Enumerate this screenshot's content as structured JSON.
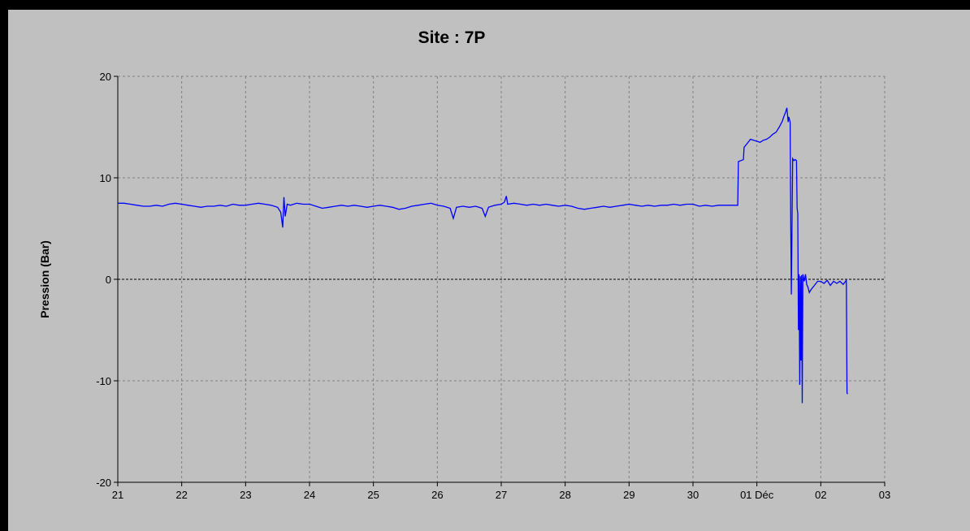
{
  "chart_data": {
    "type": "line",
    "title": "Site :  7P",
    "xlabel": "",
    "ylabel": "Pression  (Bar)",
    "xlim": [
      0,
      12
    ],
    "ylim": [
      -20,
      20
    ],
    "x_ticks": [
      {
        "pos": 0,
        "label": "21"
      },
      {
        "pos": 1,
        "label": "22"
      },
      {
        "pos": 2,
        "label": "23"
      },
      {
        "pos": 3,
        "label": "24"
      },
      {
        "pos": 4,
        "label": "25"
      },
      {
        "pos": 5,
        "label": "26"
      },
      {
        "pos": 6,
        "label": "27"
      },
      {
        "pos": 7,
        "label": "28"
      },
      {
        "pos": 8,
        "label": "29"
      },
      {
        "pos": 9,
        "label": "30"
      },
      {
        "pos": 10,
        "label": "01 Déc"
      },
      {
        "pos": 11,
        "label": "02"
      },
      {
        "pos": 12,
        "label": "03"
      }
    ],
    "y_ticks": [
      {
        "value": 20,
        "label": "20"
      },
      {
        "value": 10,
        "label": "10"
      },
      {
        "value": 0,
        "label": "0"
      },
      {
        "value": -10,
        "label": "-10"
      },
      {
        "value": -20,
        "label": "-20"
      }
    ],
    "grid": true,
    "zero_line": true,
    "series": [
      {
        "color": "#0000ff",
        "points": [
          [
            0.0,
            7.5
          ],
          [
            0.1,
            7.5
          ],
          [
            0.2,
            7.4
          ],
          [
            0.3,
            7.3
          ],
          [
            0.4,
            7.2
          ],
          [
            0.5,
            7.2
          ],
          [
            0.6,
            7.3
          ],
          [
            0.7,
            7.2
          ],
          [
            0.8,
            7.4
          ],
          [
            0.9,
            7.5
          ],
          [
            1.0,
            7.4
          ],
          [
            1.1,
            7.3
          ],
          [
            1.2,
            7.2
          ],
          [
            1.3,
            7.1
          ],
          [
            1.4,
            7.2
          ],
          [
            1.5,
            7.2
          ],
          [
            1.6,
            7.3
          ],
          [
            1.7,
            7.2
          ],
          [
            1.8,
            7.4
          ],
          [
            1.9,
            7.3
          ],
          [
            2.0,
            7.3
          ],
          [
            2.1,
            7.4
          ],
          [
            2.2,
            7.5
          ],
          [
            2.3,
            7.4
          ],
          [
            2.4,
            7.3
          ],
          [
            2.5,
            7.1
          ],
          [
            2.55,
            6.6
          ],
          [
            2.58,
            5.1
          ],
          [
            2.6,
            8.1
          ],
          [
            2.62,
            6.2
          ],
          [
            2.65,
            7.4
          ],
          [
            2.7,
            7.3
          ],
          [
            2.8,
            7.5
          ],
          [
            2.9,
            7.4
          ],
          [
            3.0,
            7.4
          ],
          [
            3.1,
            7.2
          ],
          [
            3.2,
            7.0
          ],
          [
            3.3,
            7.1
          ],
          [
            3.4,
            7.2
          ],
          [
            3.5,
            7.3
          ],
          [
            3.6,
            7.2
          ],
          [
            3.7,
            7.3
          ],
          [
            3.8,
            7.2
          ],
          [
            3.9,
            7.1
          ],
          [
            4.0,
            7.2
          ],
          [
            4.1,
            7.3
          ],
          [
            4.2,
            7.2
          ],
          [
            4.3,
            7.1
          ],
          [
            4.4,
            6.9
          ],
          [
            4.5,
            7.0
          ],
          [
            4.6,
            7.2
          ],
          [
            4.7,
            7.3
          ],
          [
            4.8,
            7.4
          ],
          [
            4.9,
            7.5
          ],
          [
            5.0,
            7.3
          ],
          [
            5.1,
            7.2
          ],
          [
            5.2,
            7.0
          ],
          [
            5.25,
            6.0
          ],
          [
            5.3,
            7.1
          ],
          [
            5.4,
            7.2
          ],
          [
            5.5,
            7.1
          ],
          [
            5.6,
            7.2
          ],
          [
            5.7,
            7.0
          ],
          [
            5.75,
            6.2
          ],
          [
            5.8,
            7.1
          ],
          [
            5.9,
            7.3
          ],
          [
            6.0,
            7.4
          ],
          [
            6.05,
            7.6
          ],
          [
            6.08,
            8.2
          ],
          [
            6.1,
            7.4
          ],
          [
            6.2,
            7.5
          ],
          [
            6.3,
            7.4
          ],
          [
            6.4,
            7.3
          ],
          [
            6.5,
            7.4
          ],
          [
            6.6,
            7.3
          ],
          [
            6.7,
            7.4
          ],
          [
            6.8,
            7.3
          ],
          [
            6.9,
            7.2
          ],
          [
            7.0,
            7.3
          ],
          [
            7.1,
            7.2
          ],
          [
            7.2,
            7.0
          ],
          [
            7.3,
            6.9
          ],
          [
            7.4,
            7.0
          ],
          [
            7.5,
            7.1
          ],
          [
            7.6,
            7.2
          ],
          [
            7.7,
            7.1
          ],
          [
            7.8,
            7.2
          ],
          [
            7.9,
            7.3
          ],
          [
            8.0,
            7.4
          ],
          [
            8.1,
            7.3
          ],
          [
            8.2,
            7.2
          ],
          [
            8.3,
            7.3
          ],
          [
            8.4,
            7.2
          ],
          [
            8.5,
            7.3
          ],
          [
            8.6,
            7.3
          ],
          [
            8.7,
            7.4
          ],
          [
            8.8,
            7.3
          ],
          [
            8.9,
            7.4
          ],
          [
            9.0,
            7.4
          ],
          [
            9.1,
            7.2
          ],
          [
            9.2,
            7.3
          ],
          [
            9.3,
            7.2
          ],
          [
            9.4,
            7.3
          ],
          [
            9.5,
            7.3
          ],
          [
            9.6,
            7.3
          ],
          [
            9.7,
            7.3
          ],
          [
            9.71,
            11.6
          ],
          [
            9.75,
            11.7
          ],
          [
            9.79,
            11.8
          ],
          [
            9.8,
            13.0
          ],
          [
            9.85,
            13.4
          ],
          [
            9.9,
            13.8
          ],
          [
            9.95,
            13.7
          ],
          [
            10.0,
            13.6
          ],
          [
            10.05,
            13.5
          ],
          [
            10.1,
            13.7
          ],
          [
            10.15,
            13.8
          ],
          [
            10.2,
            14.0
          ],
          [
            10.25,
            14.3
          ],
          [
            10.3,
            14.5
          ],
          [
            10.35,
            15.0
          ],
          [
            10.4,
            15.6
          ],
          [
            10.42,
            16.0
          ],
          [
            10.45,
            16.5
          ],
          [
            10.47,
            16.9
          ],
          [
            10.49,
            15.5
          ],
          [
            10.5,
            16.0
          ],
          [
            10.52,
            15.5
          ],
          [
            10.53,
            5.0
          ],
          [
            10.54,
            -1.5
          ],
          [
            10.56,
            11.9
          ],
          [
            10.58,
            11.7
          ],
          [
            10.6,
            11.8
          ],
          [
            10.62,
            11.7
          ],
          [
            10.63,
            7.0
          ],
          [
            10.64,
            6.5
          ],
          [
            10.65,
            -5.0
          ],
          [
            10.66,
            0.5
          ],
          [
            10.67,
            -10.4
          ],
          [
            10.68,
            0.3
          ],
          [
            10.69,
            -8.0
          ],
          [
            10.7,
            0.4
          ],
          [
            10.71,
            -12.2
          ],
          [
            10.72,
            0.5
          ],
          [
            10.74,
            -0.2
          ],
          [
            10.76,
            0.5
          ],
          [
            10.78,
            -0.5
          ],
          [
            10.8,
            -0.8
          ],
          [
            10.82,
            -1.3
          ],
          [
            10.85,
            -1.0
          ],
          [
            10.9,
            -0.6
          ],
          [
            10.95,
            -0.2
          ],
          [
            11.0,
            -0.2
          ],
          [
            11.05,
            -0.4
          ],
          [
            11.1,
            -0.1
          ],
          [
            11.15,
            -0.6
          ],
          [
            11.2,
            -0.2
          ],
          [
            11.25,
            -0.4
          ],
          [
            11.3,
            -0.2
          ],
          [
            11.35,
            -0.5
          ],
          [
            11.4,
            -0.1
          ],
          [
            11.41,
            -11.2
          ],
          [
            11.42,
            -11.3
          ]
        ]
      }
    ]
  }
}
